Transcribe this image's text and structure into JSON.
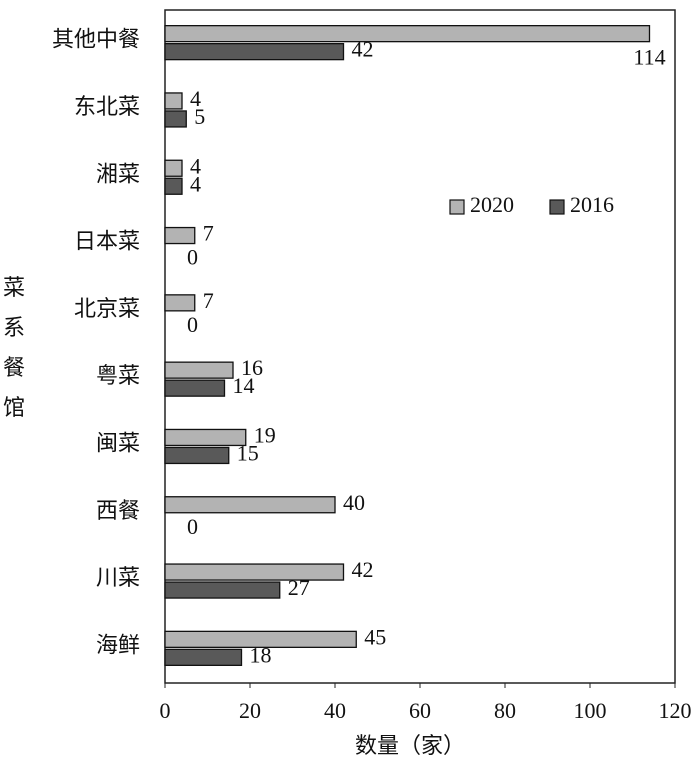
{
  "chart_data": {
    "type": "bar",
    "orientation": "horizontal",
    "xlabel": "数量（家）",
    "ylabel": "菜系餐馆",
    "categories": [
      "其他中餐",
      "东北菜",
      "湘菜",
      "日本菜",
      "北京菜",
      "粤菜",
      "闽菜",
      "西餐",
      "川菜",
      "海鲜"
    ],
    "series": [
      {
        "name": "2020",
        "color": "#b3b3b3",
        "values": [
          114,
          4,
          4,
          7,
          7,
          16,
          19,
          40,
          42,
          45
        ]
      },
      {
        "name": "2016",
        "color": "#595959",
        "values": [
          42,
          5,
          4,
          0,
          0,
          14,
          15,
          0,
          27,
          18
        ]
      }
    ],
    "xlim": [
      0,
      120
    ],
    "xticks": [
      0,
      20,
      40,
      60,
      80,
      100,
      120
    ],
    "grid": false,
    "legend": "upper right"
  }
}
